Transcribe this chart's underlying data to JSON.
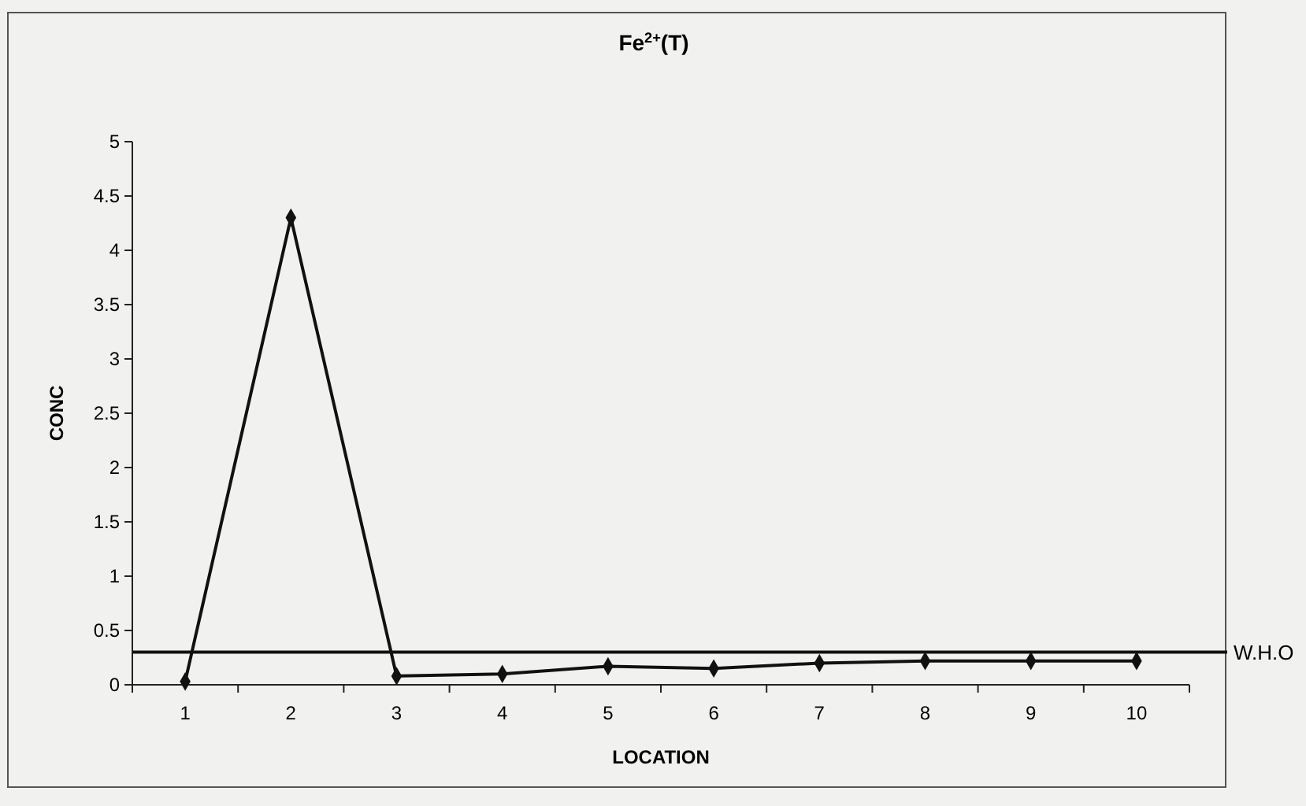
{
  "chart_data": {
    "type": "line",
    "title": "Fe$^{2+}$(T)",
    "xlabel": "LOCATION",
    "ylabel": "CONC",
    "categories": [
      "1",
      "2",
      "3",
      "4",
      "5",
      "6",
      "7",
      "8",
      "9",
      "10"
    ],
    "series": [
      {
        "color": "#111111",
        "values": [
          0.03,
          4.3,
          0.08,
          0.1,
          0.17,
          0.15,
          0.2,
          0.22,
          0.22,
          0.22
        ]
      }
    ],
    "ylim": [
      0,
      5
    ],
    "yticks": [
      0,
      0.5,
      1,
      1.5,
      2,
      2.5,
      3,
      3.5,
      4,
      4.5,
      5
    ],
    "grid": false,
    "marker": "diamond",
    "line_style": "solid",
    "ref_lines": [
      {
        "axis": "y",
        "value": 0.3,
        "label": "W.H.O",
        "color": "#111111",
        "line_style": "solid"
      }
    ]
  }
}
